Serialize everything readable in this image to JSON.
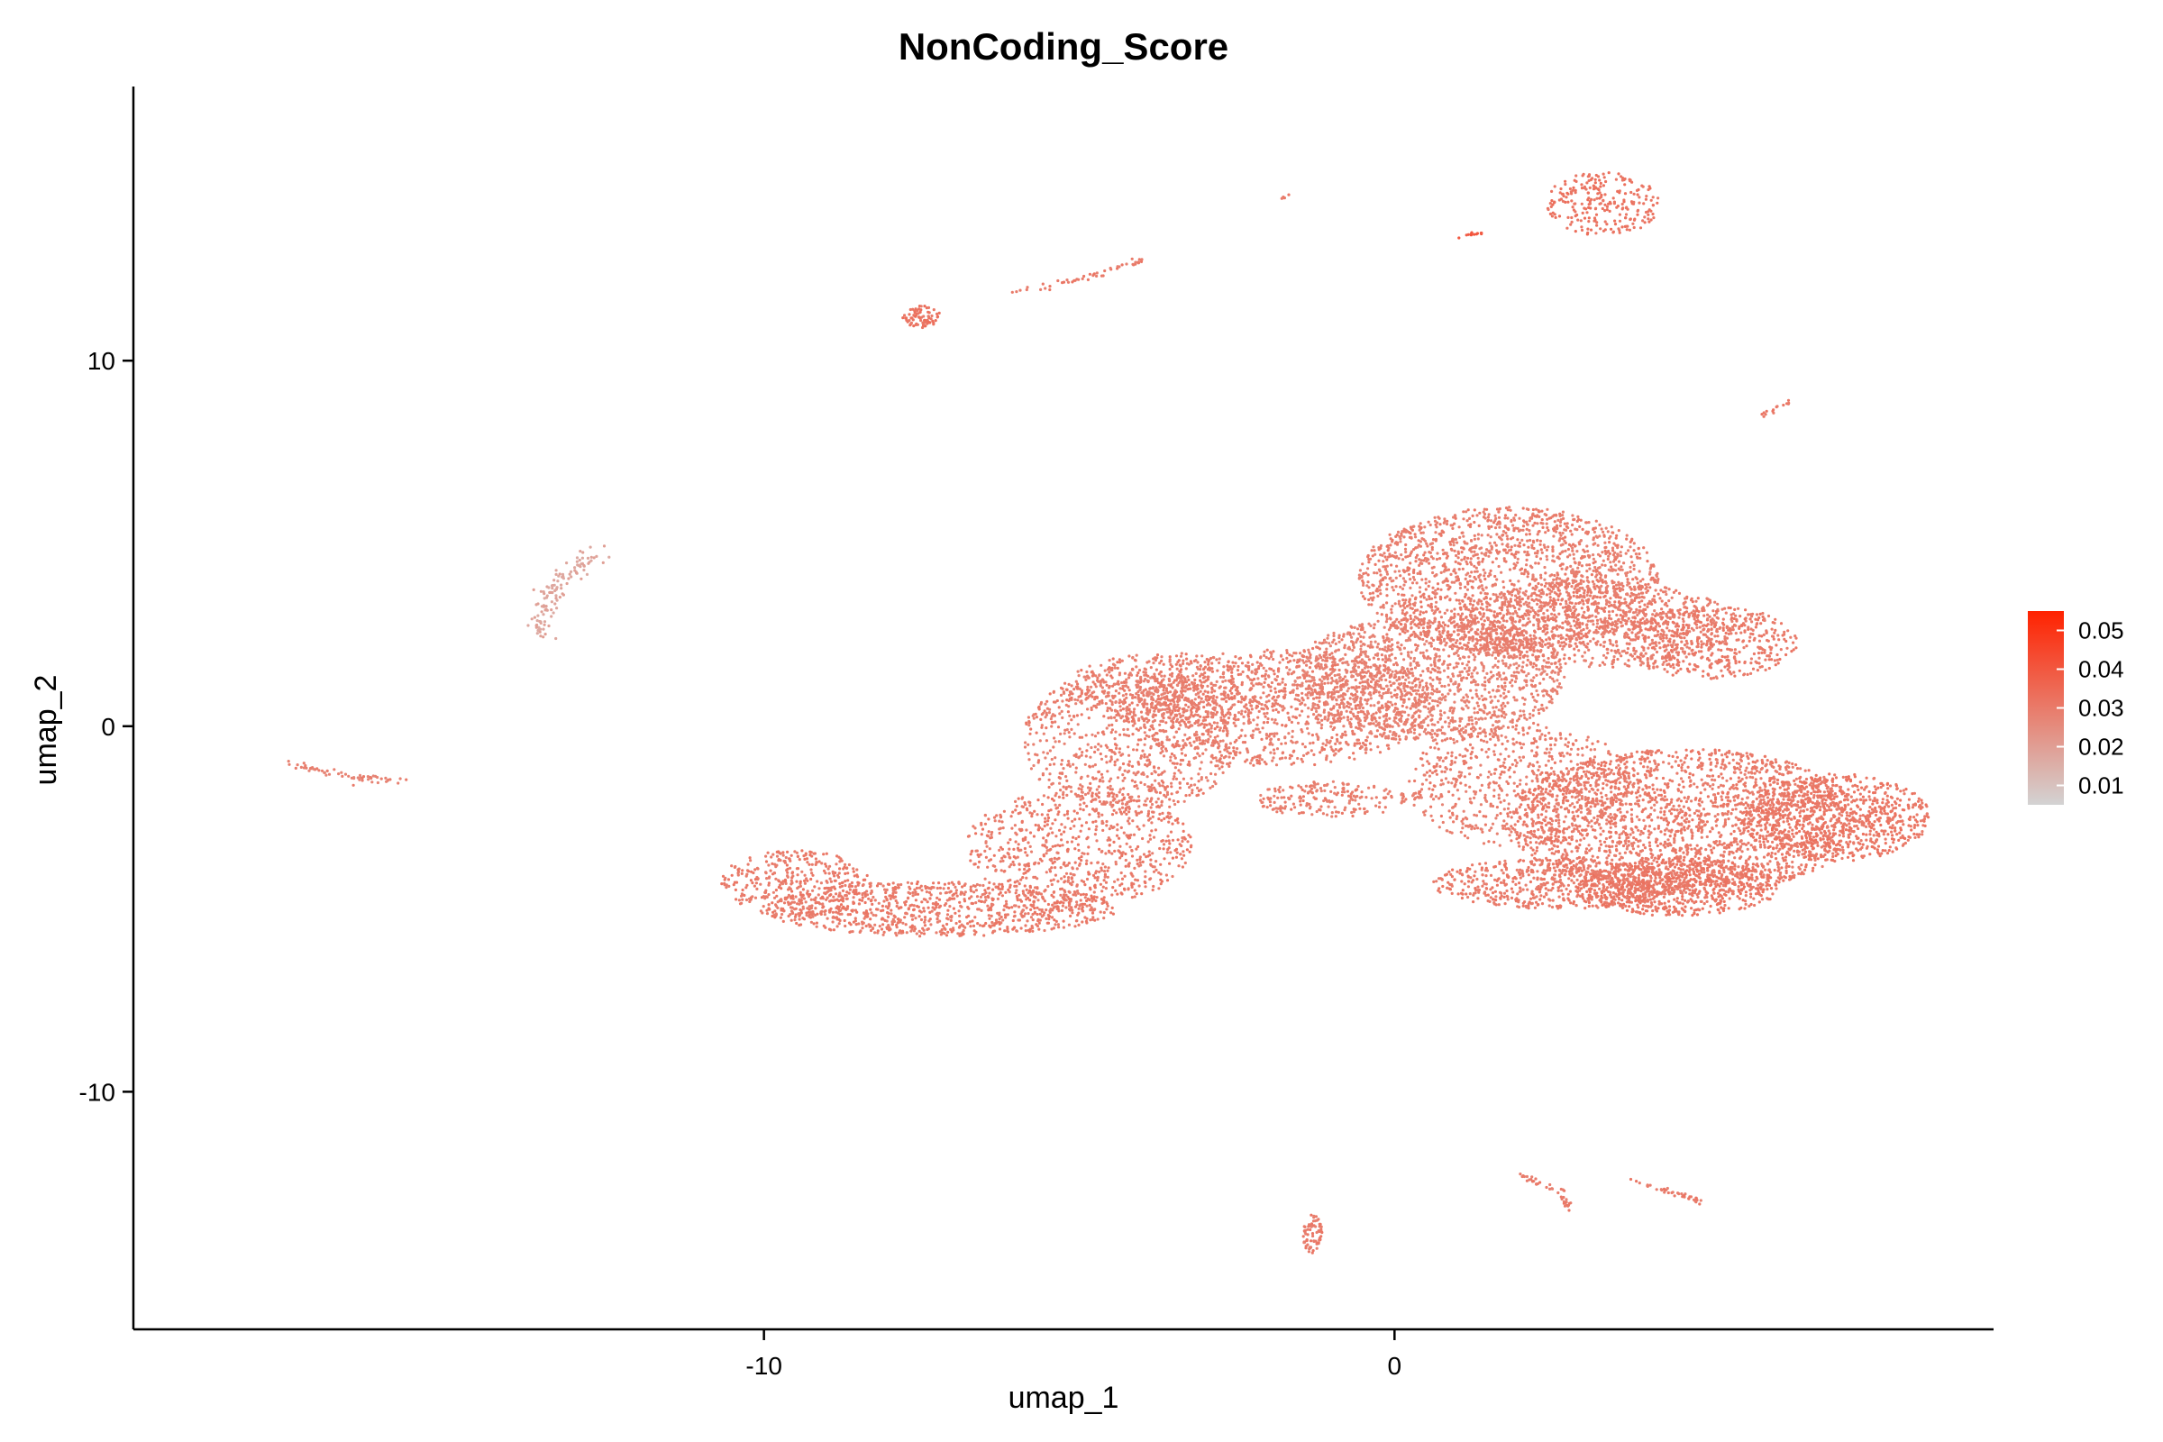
{
  "chart_data": {
    "type": "scatter",
    "title": "NonCoding_Score",
    "xlabel": "umap_1",
    "ylabel": "umap_2",
    "xlim": [
      -20,
      9.5
    ],
    "ylim": [
      -16.5,
      17.5
    ],
    "x_ticks": [
      -10,
      0
    ],
    "y_ticks": [
      -10,
      0,
      10
    ],
    "x_tick_labels": [
      "-10",
      "0"
    ],
    "y_tick_labels": [
      "-10",
      "0",
      "10"
    ],
    "grid": false,
    "legend": {
      "placement": "right",
      "kind": "colorbar",
      "range": [
        0.005,
        0.055
      ],
      "ticks": [
        0.01,
        0.02,
        0.03,
        0.04,
        0.05
      ],
      "tick_labels": [
        "0.01",
        "0.02",
        "0.03",
        "0.04",
        "0.05"
      ],
      "color_low": "#d3d3d3",
      "color_high": "#ff2200"
    },
    "point_color": "#ef9a85",
    "clusters": [
      {
        "kind": "blob",
        "cx": -7.2,
        "cy": -5.0,
        "rx": 2.8,
        "ry": 0.75,
        "n": 900,
        "value": 0.03
      },
      {
        "kind": "blob",
        "cx": -9.5,
        "cy": -4.3,
        "rx": 1.2,
        "ry": 0.9,
        "n": 350,
        "value": 0.03
      },
      {
        "kind": "blob",
        "cx": -5.0,
        "cy": -3.3,
        "rx": 1.8,
        "ry": 1.6,
        "n": 700,
        "value": 0.03
      },
      {
        "kind": "blob",
        "cx": -4.2,
        "cy": -0.4,
        "rx": 1.7,
        "ry": 2.0,
        "n": 800,
        "value": 0.029
      },
      {
        "kind": "blob",
        "cx": -3.5,
        "cy": 1.0,
        "rx": 1.8,
        "ry": 1.0,
        "n": 500,
        "value": 0.029
      },
      {
        "kind": "blob",
        "cx": -1.8,
        "cy": 0.5,
        "rx": 2.5,
        "ry": 1.6,
        "n": 1100,
        "value": 0.029
      },
      {
        "kind": "blob",
        "cx": -1.0,
        "cy": -2.0,
        "rx": 1.2,
        "ry": 0.5,
        "n": 200,
        "value": 0.029
      },
      {
        "kind": "blob",
        "cx": 0.5,
        "cy": 1.3,
        "rx": 2.2,
        "ry": 1.7,
        "n": 1500,
        "value": 0.028
      },
      {
        "kind": "blob",
        "cx": 1.8,
        "cy": 4.0,
        "rx": 2.4,
        "ry": 2.0,
        "n": 1800,
        "value": 0.029
      },
      {
        "kind": "blob",
        "cx": 3.2,
        "cy": 2.8,
        "rx": 2.2,
        "ry": 1.2,
        "n": 900,
        "value": 0.029
      },
      {
        "kind": "blob",
        "cx": 5.0,
        "cy": 2.3,
        "rx": 1.4,
        "ry": 1.0,
        "n": 500,
        "value": 0.03
      },
      {
        "kind": "blob",
        "cx": 2.0,
        "cy": -1.6,
        "rx": 1.8,
        "ry": 1.7,
        "n": 700,
        "value": 0.029
      },
      {
        "kind": "blob",
        "cx": 4.6,
        "cy": -2.6,
        "rx": 2.8,
        "ry": 2.0,
        "n": 2200,
        "value": 0.03
      },
      {
        "kind": "blob",
        "cx": 2.6,
        "cy": -4.3,
        "rx": 2.0,
        "ry": 0.7,
        "n": 600,
        "value": 0.03
      },
      {
        "kind": "blob",
        "cx": 7.0,
        "cy": -2.5,
        "rx": 1.5,
        "ry": 1.2,
        "n": 800,
        "value": 0.031
      },
      {
        "kind": "blob",
        "cx": 4.5,
        "cy": -4.4,
        "rx": 1.6,
        "ry": 0.8,
        "n": 700,
        "value": 0.031
      },
      {
        "kind": "blob",
        "cx": -7.5,
        "cy": 11.2,
        "rx": 0.3,
        "ry": 0.3,
        "n": 80,
        "value": 0.032
      },
      {
        "kind": "blob",
        "cx": 3.3,
        "cy": 14.3,
        "rx": 0.9,
        "ry": 0.9,
        "n": 250,
        "value": 0.032
      },
      {
        "kind": "blob",
        "cx": -1.3,
        "cy": -13.9,
        "rx": 0.15,
        "ry": 0.6,
        "n": 70,
        "value": 0.03
      },
      {
        "kind": "arc",
        "pts": [
          [
            -17.6,
            -1.0
          ],
          [
            -16.5,
            -1.4
          ],
          [
            -15.7,
            -1.5
          ]
        ],
        "n": 60,
        "w": 0.05,
        "value": 0.028
      },
      {
        "kind": "arc",
        "pts": [
          [
            -13.5,
            2.5
          ],
          [
            -13.4,
            3.7
          ],
          [
            -12.7,
            4.8
          ]
        ],
        "n": 120,
        "w": 0.12,
        "value": 0.018
      },
      {
        "kind": "arc",
        "pts": [
          [
            -6.0,
            11.9
          ],
          [
            -4.8,
            12.3
          ],
          [
            -4.0,
            12.8
          ]
        ],
        "n": 50,
        "w": 0.04,
        "value": 0.03
      },
      {
        "kind": "arc",
        "pts": [
          [
            5.8,
            8.5
          ],
          [
            6.3,
            8.9
          ]
        ],
        "n": 15,
        "w": 0.03,
        "value": 0.031
      },
      {
        "kind": "arc",
        "pts": [
          [
            2.0,
            -12.3
          ],
          [
            2.6,
            -12.7
          ],
          [
            2.8,
            -13.2
          ]
        ],
        "n": 40,
        "w": 0.04,
        "value": 0.03
      },
      {
        "kind": "arc",
        "pts": [
          [
            3.7,
            -12.4
          ],
          [
            4.5,
            -12.8
          ],
          [
            4.9,
            -13.0
          ]
        ],
        "n": 40,
        "w": 0.04,
        "value": 0.03
      },
      {
        "kind": "arc",
        "pts": [
          [
            1.0,
            13.4
          ],
          [
            1.4,
            13.5
          ]
        ],
        "n": 12,
        "w": 0.03,
        "value": 0.04
      },
      {
        "kind": "arc",
        "pts": [
          [
            -1.8,
            14.4
          ],
          [
            -1.7,
            14.5
          ]
        ],
        "n": 5,
        "w": 0.02,
        "value": 0.03
      }
    ]
  }
}
